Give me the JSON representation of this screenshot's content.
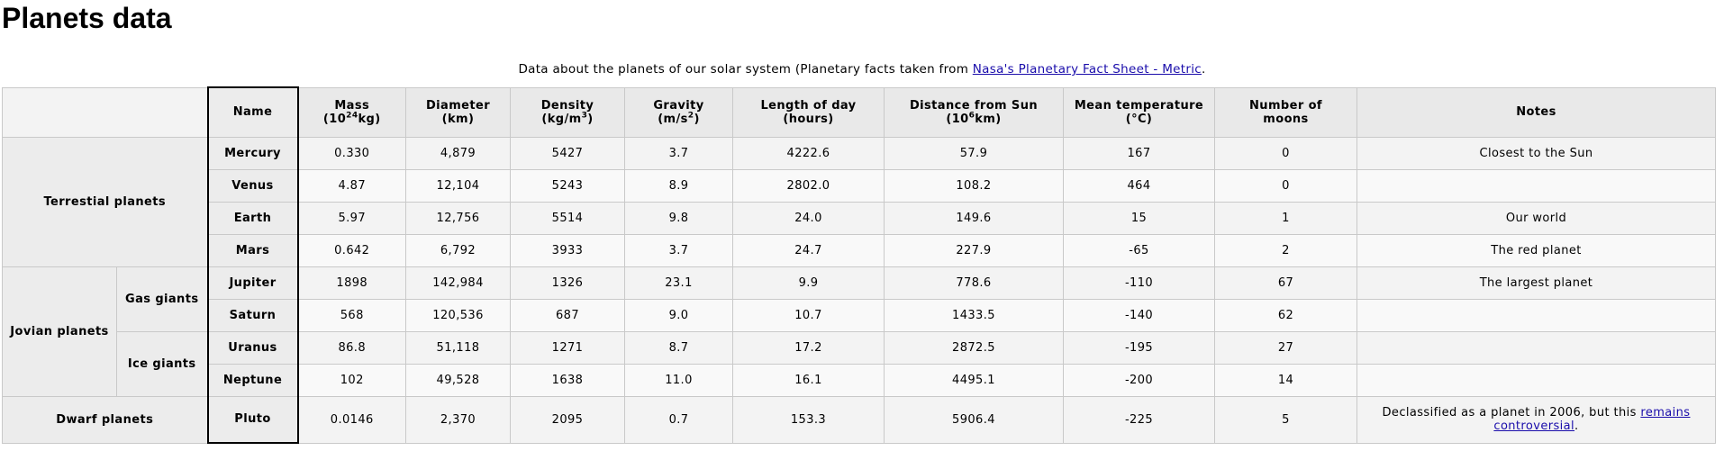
{
  "page": {
    "title": "Planets data",
    "caption_text": "Data about the planets of our solar system (Planetary facts taken from ",
    "caption_link": "Nasa's Planetary Fact Sheet - Metric",
    "caption_end": "."
  },
  "table": {
    "headers": {
      "name": "Name",
      "mass_a": "Mass",
      "mass_b": "(10",
      "mass_sup": "24",
      "mass_c": "kg)",
      "diameter_a": "Diameter",
      "diameter_b": "(km)",
      "density_a": "Density",
      "density_b": "(kg/m",
      "density_sup": "3",
      "density_c": ")",
      "gravity_a": "Gravity",
      "gravity_b": "(m/s",
      "gravity_sup": "2",
      "gravity_c": ")",
      "day_a": "Length of day",
      "day_b": "(hours)",
      "distance_a": "Distance from Sun",
      "distance_b": "(10",
      "distance_sup": "6",
      "distance_c": "km)",
      "temp_a": "Mean temperature",
      "temp_b": "(°C)",
      "moons_a": "Number of",
      "moons_b": "moons",
      "notes": "Notes"
    },
    "groups": {
      "terrestrial": "Terrestial planets",
      "jovian": "Jovian planets",
      "gas": "Gas giants",
      "ice": "Ice giants",
      "dwarf": "Dwarf planets"
    },
    "rows": [
      {
        "name": "Mercury",
        "mass": "0.330",
        "diameter": "4,879",
        "density": "5427",
        "gravity": "3.7",
        "day": "4222.6",
        "distance": "57.9",
        "temp": "167",
        "moons": "0",
        "notes": "Closest to the Sun"
      },
      {
        "name": "Venus",
        "mass": "4.87",
        "diameter": "12,104",
        "density": "5243",
        "gravity": "8.9",
        "day": "2802.0",
        "distance": "108.2",
        "temp": "464",
        "moons": "0",
        "notes": ""
      },
      {
        "name": "Earth",
        "mass": "5.97",
        "diameter": "12,756",
        "density": "5514",
        "gravity": "9.8",
        "day": "24.0",
        "distance": "149.6",
        "temp": "15",
        "moons": "1",
        "notes": "Our world"
      },
      {
        "name": "Mars",
        "mass": "0.642",
        "diameter": "6,792",
        "density": "3933",
        "gravity": "3.7",
        "day": "24.7",
        "distance": "227.9",
        "temp": "-65",
        "moons": "2",
        "notes": "The red planet"
      },
      {
        "name": "Jupiter",
        "mass": "1898",
        "diameter": "142,984",
        "density": "1326",
        "gravity": "23.1",
        "day": "9.9",
        "distance": "778.6",
        "temp": "-110",
        "moons": "67",
        "notes": "The largest planet"
      },
      {
        "name": "Saturn",
        "mass": "568",
        "diameter": "120,536",
        "density": "687",
        "gravity": "9.0",
        "day": "10.7",
        "distance": "1433.5",
        "temp": "-140",
        "moons": "62",
        "notes": ""
      },
      {
        "name": "Uranus",
        "mass": "86.8",
        "diameter": "51,118",
        "density": "1271",
        "gravity": "8.7",
        "day": "17.2",
        "distance": "2872.5",
        "temp": "-195",
        "moons": "27",
        "notes": ""
      },
      {
        "name": "Neptune",
        "mass": "102",
        "diameter": "49,528",
        "density": "1638",
        "gravity": "11.0",
        "day": "16.1",
        "distance": "4495.1",
        "temp": "-200",
        "moons": "14",
        "notes": ""
      },
      {
        "name": "Pluto",
        "mass": "0.0146",
        "diameter": "2,370",
        "density": "2095",
        "gravity": "0.7",
        "day": "153.3",
        "distance": "5906.4",
        "temp": "-225",
        "moons": "5",
        "notes": "Declassified as a planet in 2006, but this ",
        "notes_link": "remains controversial",
        "notes_end": "."
      }
    ]
  }
}
